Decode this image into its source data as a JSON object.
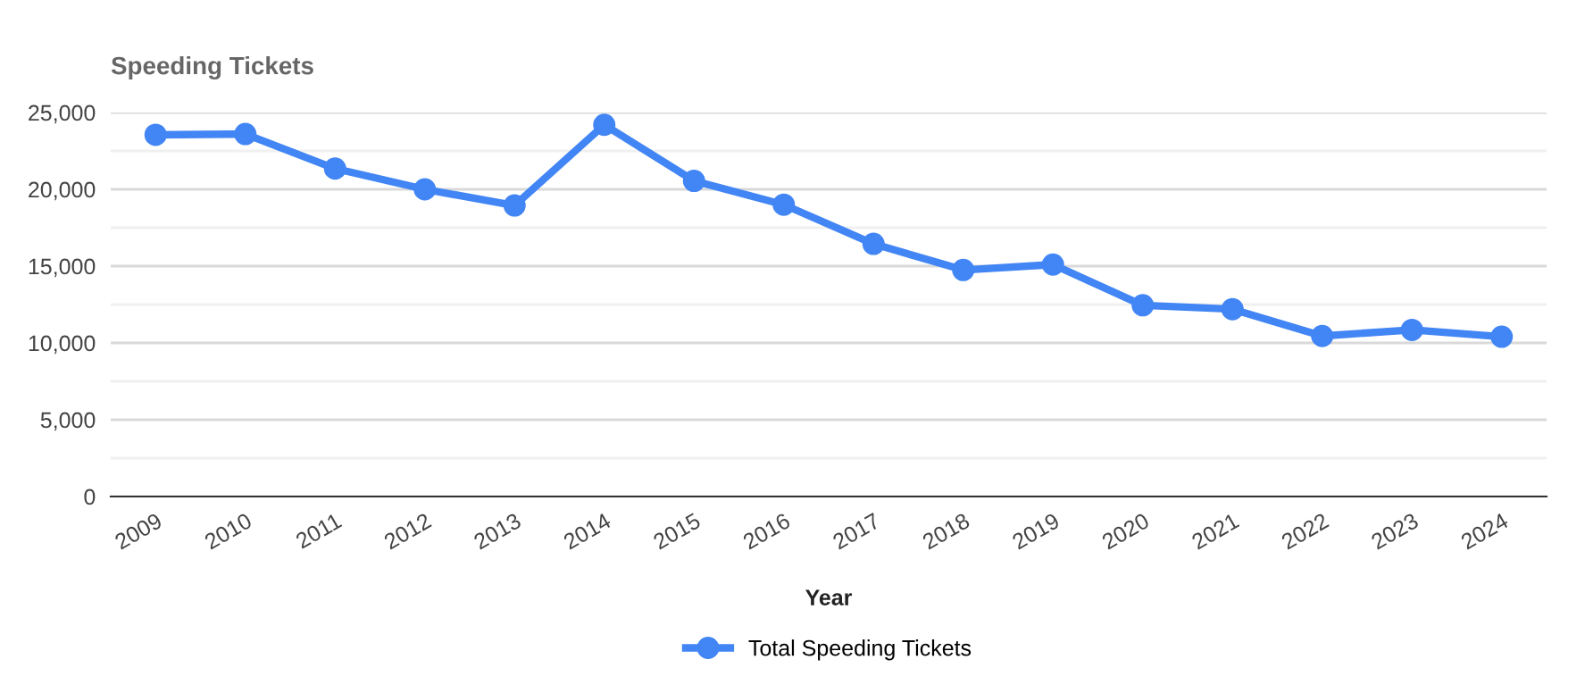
{
  "chart_data": {
    "type": "line",
    "title": "Speeding Tickets",
    "xlabel": "Year",
    "categories": [
      "2009",
      "2010",
      "2011",
      "2012",
      "2013",
      "2014",
      "2015",
      "2016",
      "2017",
      "2018",
      "2019",
      "2020",
      "2021",
      "2022",
      "2023",
      "2024"
    ],
    "series": [
      {
        "name": "Total Speeding Tickets",
        "color": "#4285f4",
        "values": [
          23550,
          23600,
          21350,
          20000,
          18950,
          24200,
          20550,
          19000,
          16450,
          14750,
          15100,
          12450,
          12200,
          10450,
          10850,
          10400
        ]
      }
    ],
    "ylim": [
      0,
      25000
    ],
    "yticks": [
      {
        "value": 0,
        "label": "0"
      },
      {
        "value": 2500,
        "label": null
      },
      {
        "value": 5000,
        "label": "5,000"
      },
      {
        "value": 7500,
        "label": null
      },
      {
        "value": 10000,
        "label": "10,000"
      },
      {
        "value": 12500,
        "label": null
      },
      {
        "value": 15000,
        "label": "15,000"
      },
      {
        "value": 17500,
        "label": null
      },
      {
        "value": 20000,
        "label": "20,000"
      },
      {
        "value": 22500,
        "label": null
      },
      {
        "value": 25000,
        "label": "25,000"
      }
    ],
    "grid": "y",
    "legend": "bottom",
    "marker": "circle",
    "line_style": "solid"
  }
}
